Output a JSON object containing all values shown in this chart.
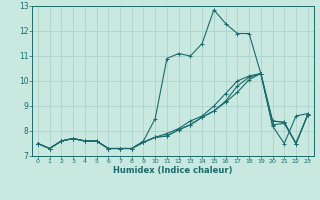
{
  "title": "",
  "xlabel": "Humidex (Indice chaleur)",
  "ylabel": "",
  "bg_color": "#c8e8e0",
  "line_color": "#1a6b6b",
  "grid_color": "#a8cec8",
  "xlim": [
    -0.5,
    23.5
  ],
  "ylim": [
    7,
    13
  ],
  "xticks": [
    0,
    1,
    2,
    3,
    4,
    5,
    6,
    7,
    8,
    9,
    10,
    11,
    12,
    13,
    14,
    15,
    16,
    17,
    18,
    19,
    20,
    21,
    22,
    23
  ],
  "yticks": [
    7,
    8,
    9,
    10,
    11,
    12,
    13
  ],
  "series": [
    [
      7.5,
      7.3,
      7.6,
      7.7,
      7.6,
      7.6,
      7.3,
      7.3,
      7.3,
      7.6,
      8.5,
      10.9,
      11.1,
      11.0,
      11.5,
      12.85,
      12.3,
      11.9,
      11.9,
      10.3,
      8.2,
      7.5,
      8.6,
      8.7
    ],
    [
      7.5,
      7.3,
      7.6,
      7.7,
      7.6,
      7.6,
      7.3,
      7.3,
      7.3,
      7.55,
      7.75,
      7.8,
      8.05,
      8.25,
      8.55,
      8.8,
      9.15,
      9.55,
      10.05,
      10.3,
      8.25,
      8.3,
      7.5,
      8.65
    ],
    [
      7.5,
      7.3,
      7.6,
      7.7,
      7.6,
      7.6,
      7.3,
      7.3,
      7.3,
      7.55,
      7.75,
      7.8,
      8.05,
      8.25,
      8.55,
      8.8,
      9.2,
      9.8,
      10.15,
      10.3,
      8.4,
      8.35,
      7.5,
      8.65
    ],
    [
      7.5,
      7.3,
      7.6,
      7.7,
      7.6,
      7.6,
      7.3,
      7.3,
      7.3,
      7.55,
      7.75,
      7.9,
      8.1,
      8.4,
      8.6,
      9.0,
      9.5,
      10.0,
      10.2,
      10.3,
      8.4,
      8.35,
      7.5,
      8.65
    ]
  ]
}
